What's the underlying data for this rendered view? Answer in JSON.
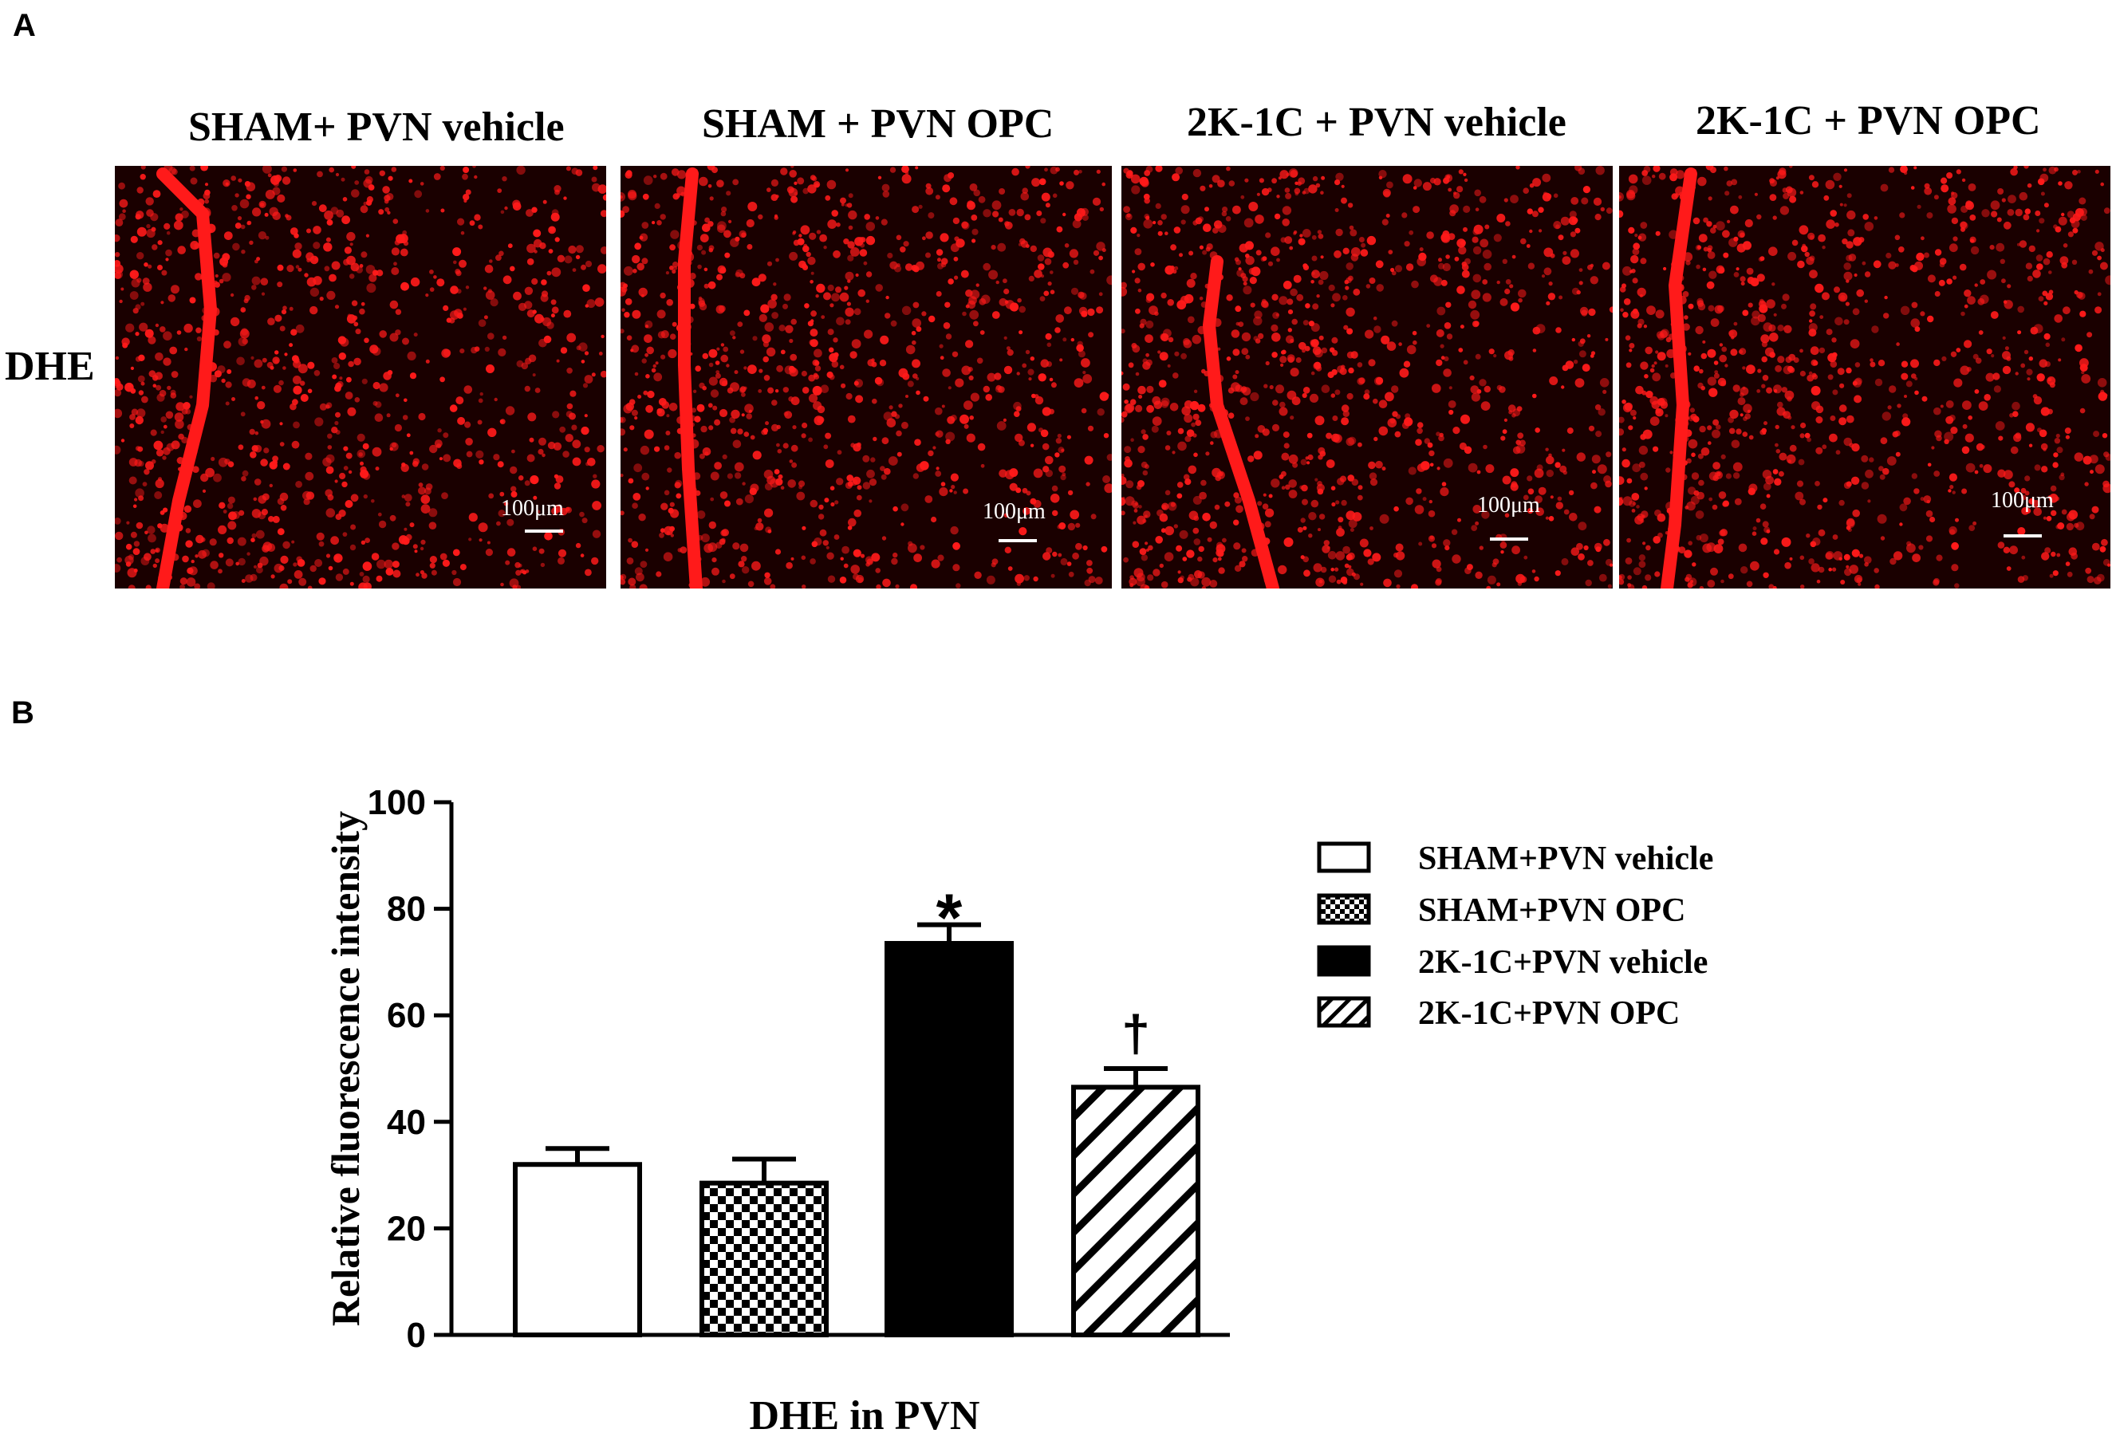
{
  "panel_a": {
    "letter": "A",
    "row_label": "DHE",
    "columns": [
      {
        "title": "SHAM+ PVN vehicle",
        "scale_label": "100μm"
      },
      {
        "title": "SHAM + PVN OPC",
        "scale_label": "100μm"
      },
      {
        "title": "2K-1C + PVN vehicle",
        "scale_label": "100μm"
      },
      {
        "title": "2K-1C + PVN OPC",
        "scale_label": "100μm"
      }
    ],
    "stain_color": "#ff1a1a"
  },
  "panel_b": {
    "letter": "B"
  },
  "chart_data": {
    "type": "bar",
    "title": "",
    "xlabel": "DHE in PVN",
    "ylabel": "Relative fluorescence intensity",
    "ylim": [
      0,
      100
    ],
    "yticks": [
      0,
      20,
      40,
      60,
      80,
      100
    ],
    "categories": [
      "SHAM+PVN vehicle",
      "SHAM+PVN OPC",
      "2K-1C+PVN vehicle",
      "2K-1C+PVN OPC"
    ],
    "values": [
      32,
      28.5,
      73.5,
      46.5
    ],
    "errors": [
      3,
      4.5,
      3.5,
      3.5
    ],
    "patterns": [
      "white",
      "checker",
      "black",
      "hatch"
    ],
    "annotations": [
      "",
      "",
      "*",
      "†"
    ],
    "legend": {
      "placement": "right",
      "entries": [
        "SHAM+PVN vehicle",
        "SHAM+PVN OPC",
        "2K-1C+PVN vehicle",
        "2K-1C+PVN OPC"
      ]
    },
    "grid": false
  }
}
